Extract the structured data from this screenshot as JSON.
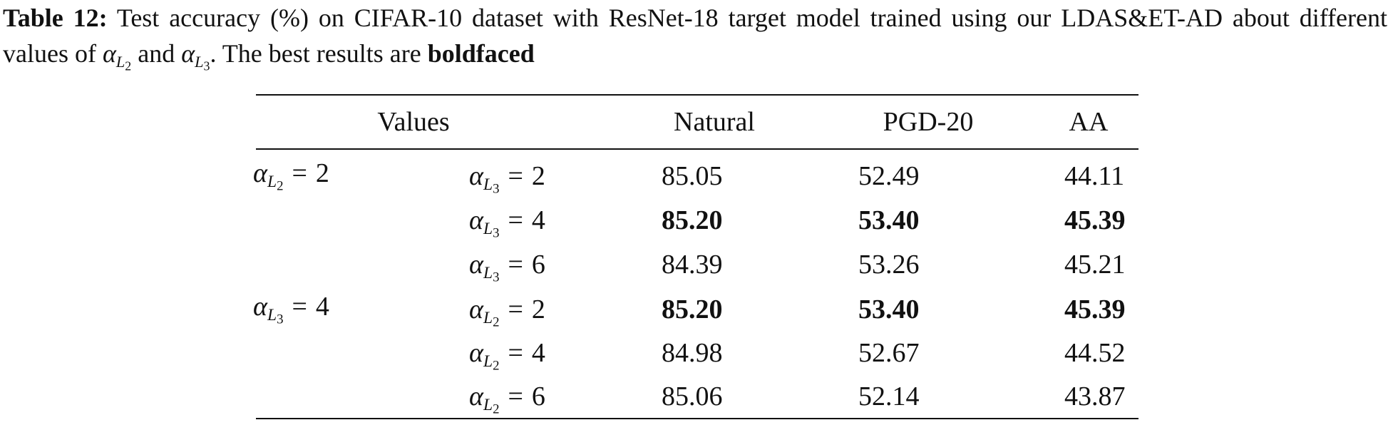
{
  "caption": {
    "label": "Table 12:",
    "text_1": "Test accuracy (%) on CIFAR-10 dataset with ResNet-18 target model trained using our LDAS&ET-AD about different values of",
    "math_1": {
      "symbol": "α",
      "sub": "L",
      "subsub": "2"
    },
    "text_2": "and",
    "math_2": {
      "symbol": "α",
      "sub": "L",
      "subsub": "3"
    },
    "text_3": ". The best results are",
    "emphasis": "boldfaced"
  },
  "table": {
    "header": [
      "Values",
      "Natural",
      "PGD-20",
      "AA"
    ],
    "rows": [
      {
        "group": {
          "symbol": "α",
          "sub": "L",
          "subsub": "2",
          "relation": "=",
          "value": "2"
        },
        "setting": {
          "symbol": "α",
          "sub": "L",
          "subsub": "3",
          "relation": "=",
          "value": "2"
        },
        "cells": [
          "85.05",
          "52.49",
          "44.11"
        ],
        "bold": false
      },
      {
        "group": null,
        "setting": {
          "symbol": "α",
          "sub": "L",
          "subsub": "3",
          "relation": "=",
          "value": "4"
        },
        "cells": [
          "85.20",
          "53.40",
          "45.39"
        ],
        "bold": true
      },
      {
        "group": null,
        "setting": {
          "symbol": "α",
          "sub": "L",
          "subsub": "3",
          "relation": "=",
          "value": "6"
        },
        "cells": [
          "84.39",
          "53.26",
          "45.21"
        ],
        "bold": false
      },
      {
        "group": {
          "symbol": "α",
          "sub": "L",
          "subsub": "3",
          "relation": "=",
          "value": "4"
        },
        "setting": {
          "symbol": "α",
          "sub": "L",
          "subsub": "2",
          "relation": "=",
          "value": "2"
        },
        "cells": [
          "85.20",
          "53.40",
          "45.39"
        ],
        "bold": true
      },
      {
        "group": null,
        "setting": {
          "symbol": "α",
          "sub": "L",
          "subsub": "2",
          "relation": "=",
          "value": "4"
        },
        "cells": [
          "84.98",
          "52.67",
          "44.52"
        ],
        "bold": false
      },
      {
        "group": null,
        "setting": {
          "symbol": "α",
          "sub": "L",
          "subsub": "2",
          "relation": "=",
          "value": "6"
        },
        "cells": [
          "85.06",
          "52.14",
          "43.87"
        ],
        "bold": false
      }
    ]
  }
}
